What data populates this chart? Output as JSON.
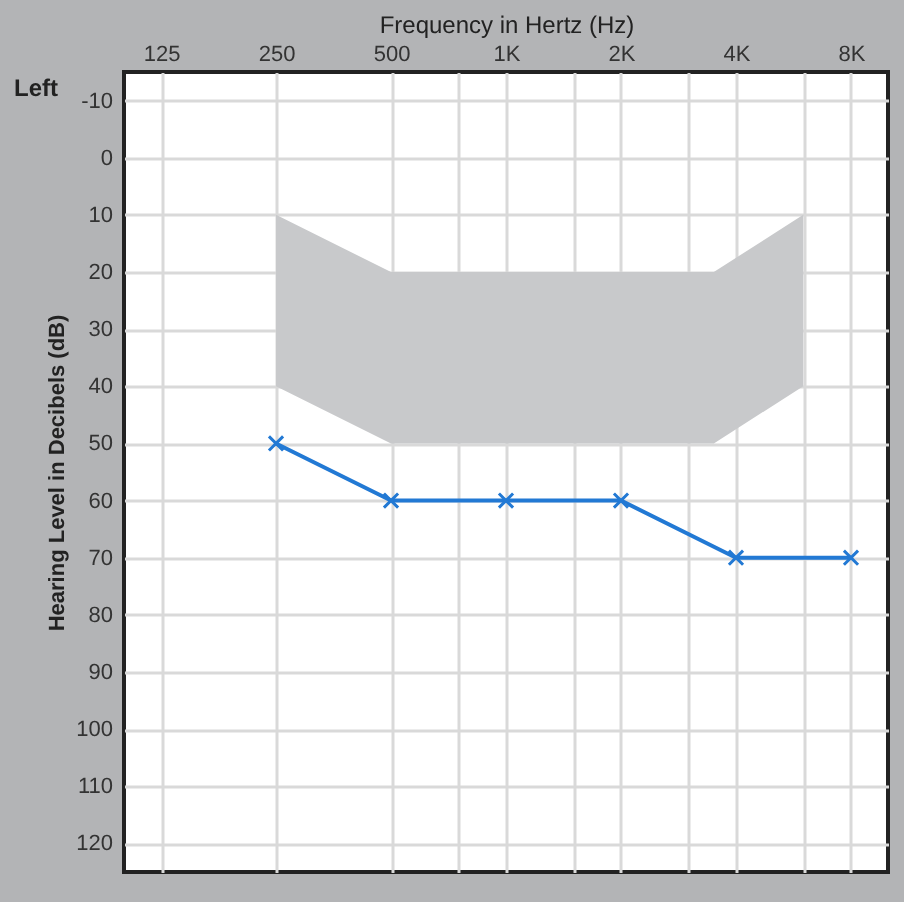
{
  "chart_data": {
    "type": "line",
    "xlabel": "Frequency in Hertz (Hz)",
    "ylabel": "Hearing Level in Decibels (dB)",
    "annotations": [
      "Left"
    ],
    "log": "x",
    "xlim": [
      100,
      10000
    ],
    "xticks": [
      125,
      250,
      500,
      {
        "value": 750,
        "label": null
      },
      {
        "value": 1000,
        "label": "1K"
      },
      {
        "value": 1500,
        "label": null
      },
      {
        "value": 2000,
        "label": "2K"
      },
      {
        "value": 3000,
        "label": null
      },
      {
        "value": 4000,
        "label": "4K"
      },
      {
        "value": 6000,
        "label": null
      },
      {
        "value": 8000,
        "label": "8K"
      }
    ],
    "ylim": [
      125,
      -15
    ],
    "yticks": [
      -10,
      0,
      10,
      20,
      30,
      40,
      50,
      60,
      70,
      80,
      90,
      100,
      110,
      120
    ],
    "grid": true,
    "line_style": "solid",
    "series": [
      {
        "type": "area",
        "color": "#c8c9cb",
        "x": [
          250,
          500,
          3500,
          6000
        ],
        "values": [
          null,
          null,
          null,
          null
        ],
        "upper": [
          10,
          20,
          20,
          10
        ],
        "lower": [
          40,
          50,
          50,
          40
        ]
      },
      {
        "type": "line",
        "color": "#2279d4",
        "marker": "cross",
        "x": [
          250,
          500,
          1000,
          2000,
          4000,
          8000
        ],
        "values": [
          50,
          60,
          60,
          60,
          70,
          70
        ]
      }
    ]
  }
}
